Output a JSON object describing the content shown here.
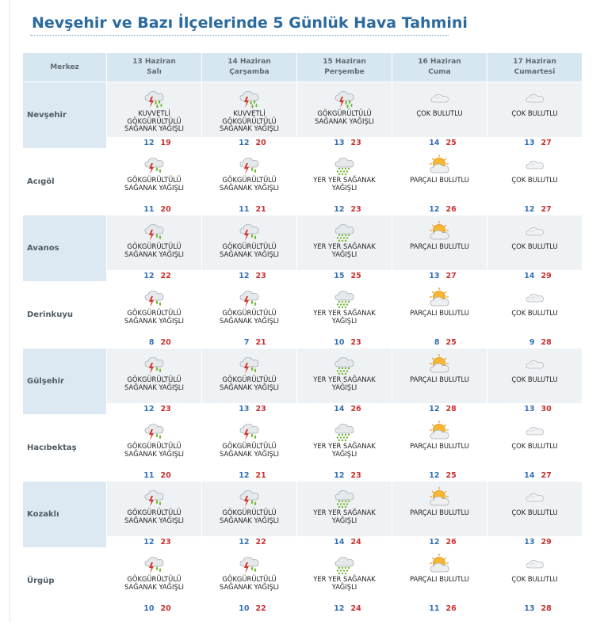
{
  "title": "Nevşehir ve Bazı İlçelerinde 5 Günlük Hava Tahmini",
  "header": {
    "merkez": "Merkez",
    "days": [
      {
        "date": "13 Haziran",
        "day": "Salı"
      },
      {
        "date": "14 Haziran",
        "day": "Çarşamba"
      },
      {
        "date": "15 Haziran",
        "day": "Perşembe"
      },
      {
        "date": "16 Haziran",
        "day": "Cuma"
      },
      {
        "date": "17 Haziran",
        "day": "Cumartesi"
      }
    ]
  },
  "rows": [
    {
      "name": "Nevşehir",
      "shade": true,
      "days": [
        {
          "icon": "storm-heavy-icon",
          "desc": "KUVVETLİ GÖKGÜRÜLTÜLÜ SAĞANAK YAĞIŞLI",
          "min": "12",
          "max": "19"
        },
        {
          "icon": "storm-heavy-icon",
          "desc": "KUVVETLİ GÖKGÜRÜLTÜLÜ SAĞANAK YAĞIŞLI",
          "min": "12",
          "max": "20"
        },
        {
          "icon": "storm-heavy-icon",
          "desc": "GÖKGÜRÜLTÜLÜ SAĞANAK YAĞIŞLI",
          "min": "13",
          "max": "23"
        },
        {
          "icon": "cloudy-icon",
          "desc": "ÇOK BULUTLU",
          "min": "14",
          "max": "25"
        },
        {
          "icon": "cloudy-icon",
          "desc": "ÇOK BULUTLU",
          "min": "13",
          "max": "27"
        }
      ]
    },
    {
      "name": "Acıgöl",
      "shade": false,
      "days": [
        {
          "icon": "storm-icon",
          "desc": "GÖKGÜRÜLTÜLÜ SAĞANAK YAĞIŞLI",
          "min": "11",
          "max": "20"
        },
        {
          "icon": "storm-icon",
          "desc": "GÖKGÜRÜLTÜLÜ SAĞANAK YAĞIŞLI",
          "min": "11",
          "max": "21"
        },
        {
          "icon": "shower-icon",
          "desc": "YER YER SAĞANAK YAĞIŞLI",
          "min": "12",
          "max": "23"
        },
        {
          "icon": "partly-cloudy-icon",
          "desc": "PARÇALI BULUTLU",
          "min": "12",
          "max": "26"
        },
        {
          "icon": "cloudy-icon",
          "desc": "ÇOK BULUTLU",
          "min": "12",
          "max": "27"
        }
      ]
    },
    {
      "name": "Avanos",
      "shade": true,
      "days": [
        {
          "icon": "storm-icon",
          "desc": "GÖKGÜRÜLTÜLÜ SAĞANAK YAĞIŞLI",
          "min": "12",
          "max": "22"
        },
        {
          "icon": "storm-icon",
          "desc": "GÖKGÜRÜLTÜLÜ SAĞANAK YAĞIŞLI",
          "min": "12",
          "max": "23"
        },
        {
          "icon": "shower-icon",
          "desc": "YER YER SAĞANAK YAĞIŞLI",
          "min": "15",
          "max": "25"
        },
        {
          "icon": "partly-cloudy-icon",
          "desc": "PARÇALI BULUTLU",
          "min": "13",
          "max": "27"
        },
        {
          "icon": "cloudy-icon",
          "desc": "ÇOK BULUTLU",
          "min": "14",
          "max": "29"
        }
      ]
    },
    {
      "name": "Derinkuyu",
      "shade": false,
      "days": [
        {
          "icon": "storm-icon",
          "desc": "GÖKGÜRÜLTÜLÜ SAĞANAK YAĞIŞLI",
          "min": "8",
          "max": "20"
        },
        {
          "icon": "storm-icon",
          "desc": "GÖKGÜRÜLTÜLÜ SAĞANAK YAĞIŞLI",
          "min": "7",
          "max": "21"
        },
        {
          "icon": "shower-icon",
          "desc": "YER YER SAĞANAK YAĞIŞLI",
          "min": "10",
          "max": "23"
        },
        {
          "icon": "partly-cloudy-icon",
          "desc": "PARÇALI BULUTLU",
          "min": "8",
          "max": "25"
        },
        {
          "icon": "cloudy-icon",
          "desc": "ÇOK BULUTLU",
          "min": "9",
          "max": "28"
        }
      ]
    },
    {
      "name": "Gülşehir",
      "shade": true,
      "days": [
        {
          "icon": "storm-icon",
          "desc": "GÖKGÜRÜLTÜLÜ SAĞANAK YAĞIŞLI",
          "min": "12",
          "max": "23"
        },
        {
          "icon": "storm-icon",
          "desc": "GÖKGÜRÜLTÜLÜ SAĞANAK YAĞIŞLI",
          "min": "13",
          "max": "23"
        },
        {
          "icon": "shower-icon",
          "desc": "YER YER SAĞANAK YAĞIŞLI",
          "min": "14",
          "max": "26"
        },
        {
          "icon": "partly-cloudy-icon",
          "desc": "PARÇALI BULUTLU",
          "min": "12",
          "max": "28"
        },
        {
          "icon": "cloudy-icon",
          "desc": "ÇOK BULUTLU",
          "min": "13",
          "max": "30"
        }
      ]
    },
    {
      "name": "Hacıbektaş",
      "shade": false,
      "days": [
        {
          "icon": "storm-icon",
          "desc": "GÖKGÜRÜLTÜLÜ SAĞANAK YAĞIŞLI",
          "min": "11",
          "max": "20"
        },
        {
          "icon": "storm-icon",
          "desc": "GÖKGÜRÜLTÜLÜ SAĞANAK YAĞIŞLI",
          "min": "12",
          "max": "21"
        },
        {
          "icon": "shower-icon",
          "desc": "YER YER SAĞANAK YAĞIŞLI",
          "min": "12",
          "max": "23"
        },
        {
          "icon": "partly-cloudy-icon",
          "desc": "PARÇALI BULUTLU",
          "min": "12",
          "max": "25"
        },
        {
          "icon": "cloudy-icon",
          "desc": "ÇOK BULUTLU",
          "min": "14",
          "max": "27"
        }
      ]
    },
    {
      "name": "Kozaklı",
      "shade": true,
      "days": [
        {
          "icon": "storm-icon",
          "desc": "GÖKGÜRÜLTÜLÜ SAĞANAK YAĞIŞLI",
          "min": "12",
          "max": "23"
        },
        {
          "icon": "storm-icon",
          "desc": "GÖKGÜRÜLTÜLÜ SAĞANAK YAĞIŞLI",
          "min": "12",
          "max": "22"
        },
        {
          "icon": "shower-icon",
          "desc": "YER YER SAĞANAK YAĞIŞLI",
          "min": "14",
          "max": "24"
        },
        {
          "icon": "partly-cloudy-icon",
          "desc": "PARÇALI BULUTLU",
          "min": "12",
          "max": "26"
        },
        {
          "icon": "cloudy-icon",
          "desc": "ÇOK BULUTLU",
          "min": "13",
          "max": "29"
        }
      ]
    },
    {
      "name": "Ürgüp",
      "shade": false,
      "days": [
        {
          "icon": "storm-icon",
          "desc": "GÖKGÜRÜLTÜLÜ SAĞANAK YAĞIŞLI",
          "min": "10",
          "max": "20"
        },
        {
          "icon": "storm-icon",
          "desc": "GÖKGÜRÜLTÜLÜ SAĞANAK YAĞIŞLI",
          "min": "10",
          "max": "22"
        },
        {
          "icon": "shower-icon",
          "desc": "YER YER SAĞANAK YAĞIŞLI",
          "min": "12",
          "max": "24"
        },
        {
          "icon": "partly-cloudy-icon",
          "desc": "PARÇALI BULUTLU",
          "min": "11",
          "max": "26"
        },
        {
          "icon": "cloudy-icon",
          "desc": "ÇOK BULUTLU",
          "min": "13",
          "max": "28"
        }
      ]
    }
  ],
  "colors": {
    "title": "#2a6a9e",
    "header_bg": "#d7e7f1",
    "min_temp": "#3470b8",
    "max_temp": "#c8312f"
  }
}
